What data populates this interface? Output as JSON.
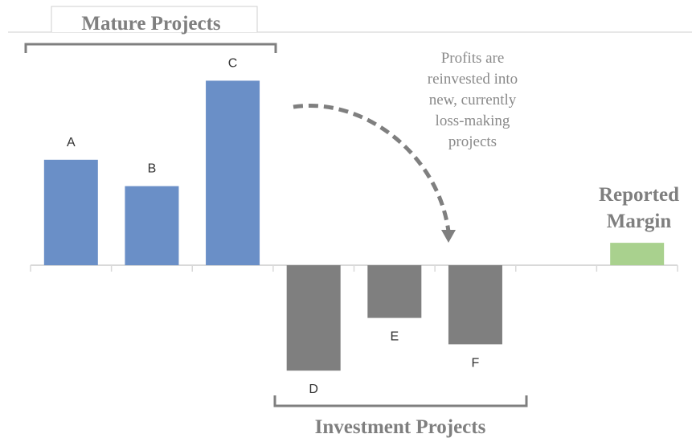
{
  "chart_data": {
    "type": "bar",
    "title": "Mature Projects",
    "group_label": "Investment Projects",
    "annotation": [
      "Profits are",
      "reinvested into",
      "new, currently",
      "loss-making",
      "projects"
    ],
    "categories": [
      "A",
      "B",
      "C",
      "D",
      "E",
      "F",
      null,
      "Reported Margin"
    ],
    "values": [
      4,
      3,
      7,
      -4,
      -2,
      -3,
      null,
      0.85
    ],
    "colors": [
      "#6a8fc7",
      "#6a8fc7",
      "#6a8fc7",
      "#7f7f7f",
      "#7f7f7f",
      "#7f7f7f",
      null,
      "#a9d18e"
    ]
  }
}
